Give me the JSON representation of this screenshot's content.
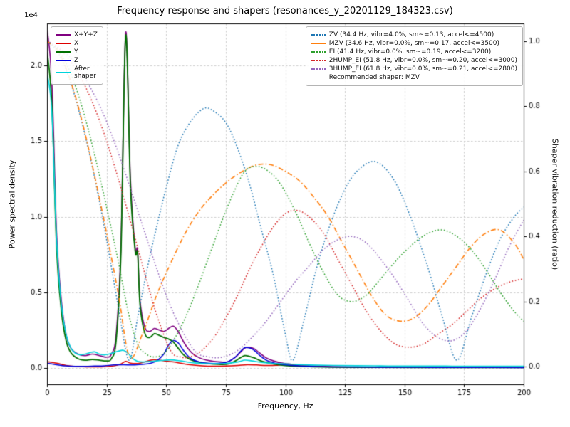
{
  "chart_data": {
    "type": "line",
    "title": "Frequency response and shapers (resonances_y_20201129_184323.csv)",
    "xlabel": "Frequency, Hz",
    "xlim": [
      0,
      200
    ],
    "xticks": [
      0,
      25,
      50,
      75,
      100,
      125,
      150,
      175,
      200
    ],
    "xtick_labels": [
      "0",
      "25",
      "50",
      "75",
      "100",
      "125",
      "150",
      "175",
      "200"
    ],
    "grid": true,
    "left_axis": {
      "label": "Power spectral density",
      "multiplier": "1e4",
      "lim": [
        -1100,
        22800
      ],
      "ticks": [
        0,
        5000,
        10000,
        15000,
        20000
      ],
      "tick_labels": [
        "0.0",
        "0.5",
        "1.0",
        "1.5",
        "2.0"
      ]
    },
    "right_axis": {
      "label": "Shaper vibration reduction (ratio)",
      "lim": [
        -0.054,
        1.054
      ],
      "ticks": [
        0,
        0.2,
        0.4,
        0.6,
        0.8,
        1.0
      ],
      "tick_labels": [
        "0.0",
        "0.2",
        "0.4",
        "0.6",
        "0.8",
        "1.0"
      ]
    },
    "series": [
      {
        "name": "psd-sum",
        "label": "X+Y+Z",
        "axis": "left",
        "color": "#800080",
        "dash": "solid",
        "width": 1.6,
        "x": [
          0,
          2,
          4,
          6,
          8,
          10,
          13,
          16,
          19,
          22,
          25,
          27,
          29,
          31,
          33,
          35,
          37,
          38,
          39,
          41,
          43,
          45,
          47,
          49,
          51,
          53,
          55,
          57,
          59,
          61,
          64,
          67,
          70,
          73,
          76,
          79,
          81,
          83,
          85,
          87,
          89,
          92,
          95,
          98,
          102,
          106,
          110,
          115,
          120,
          130,
          140,
          160,
          180,
          200
        ],
        "y": [
          22500,
          19000,
          9000,
          4500,
          2200,
          1300,
          900,
          800,
          900,
          800,
          700,
          900,
          2200,
          8000,
          22200,
          12500,
          7900,
          7800,
          4500,
          2700,
          2400,
          2600,
          2500,
          2400,
          2600,
          2750,
          2400,
          1800,
          1300,
          950,
          650,
          500,
          420,
          380,
          400,
          700,
          1000,
          1300,
          1350,
          1250,
          1000,
          650,
          450,
          330,
          240,
          170,
          130,
          90,
          70,
          50,
          40,
          30,
          25,
          20
        ]
      },
      {
        "name": "psd-x",
        "label": "X",
        "axis": "left",
        "color": "#dd0000",
        "dash": "solid",
        "width": 1.5,
        "x": [
          0,
          4,
          8,
          12,
          16,
          20,
          24,
          28,
          31,
          33,
          35,
          38,
          41,
          44,
          47,
          50,
          53,
          56,
          60,
          65,
          70,
          75,
          80,
          84,
          88,
          92,
          96,
          100,
          104,
          108,
          112,
          120,
          140,
          160,
          180,
          200
        ],
        "y": [
          400,
          300,
          150,
          80,
          60,
          60,
          70,
          120,
          250,
          420,
          300,
          280,
          380,
          520,
          500,
          430,
          380,
          300,
          200,
          130,
          100,
          110,
          150,
          200,
          180,
          150,
          160,
          220,
          180,
          120,
          80,
          50,
          30,
          25,
          20,
          15
        ]
      },
      {
        "name": "psd-y",
        "label": "Y",
        "axis": "left",
        "color": "#007000",
        "dash": "solid",
        "width": 1.8,
        "x": [
          0,
          2,
          4,
          6,
          8,
          10,
          13,
          16,
          19,
          22,
          25,
          27,
          29,
          31,
          33,
          35,
          37,
          38,
          39,
          41,
          43,
          45,
          47,
          49,
          51,
          53,
          55,
          57,
          59,
          61,
          64,
          67,
          70,
          73,
          76,
          79,
          81,
          83,
          85,
          87,
          89,
          92,
          95,
          98,
          102,
          106,
          110,
          120,
          140,
          160,
          180,
          200
        ],
        "y": [
          21000,
          17500,
          8000,
          3800,
          1800,
          1000,
          600,
          500,
          550,
          500,
          450,
          600,
          1800,
          7500,
          22000,
          12000,
          7700,
          7600,
          4200,
          2300,
          2000,
          2250,
          2150,
          2000,
          1900,
          1700,
          1300,
          900,
          650,
          480,
          350,
          280,
          240,
          220,
          250,
          450,
          650,
          800,
          750,
          650,
          500,
          350,
          250,
          180,
          120,
          90,
          70,
          40,
          25,
          20,
          15,
          10
        ]
      },
      {
        "name": "psd-z",
        "label": "Z",
        "axis": "left",
        "color": "#0000dd",
        "dash": "solid",
        "width": 1.5,
        "x": [
          0,
          4,
          8,
          12,
          16,
          20,
          24,
          28,
          32,
          36,
          40,
          43,
          46,
          49,
          51,
          53,
          55,
          57,
          59,
          61,
          64,
          67,
          70,
          73,
          76,
          79,
          81,
          83,
          85,
          87,
          89,
          92,
          95,
          98,
          102,
          106,
          110,
          120,
          140,
          160,
          180,
          200
        ],
        "y": [
          300,
          200,
          120,
          90,
          90,
          110,
          130,
          180,
          200,
          180,
          220,
          280,
          450,
          900,
          1500,
          1800,
          1650,
          1200,
          800,
          550,
          380,
          300,
          280,
          300,
          400,
          700,
          1050,
          1330,
          1300,
          1150,
          850,
          500,
          330,
          230,
          160,
          120,
          90,
          60,
          35,
          25,
          18,
          12
        ]
      },
      {
        "name": "psd-after-shaper",
        "label": "After\nshaper",
        "axis": "left",
        "color": "#00d4dc",
        "dash": "solid",
        "width": 1.6,
        "x": [
          0,
          2,
          4,
          6,
          8,
          10,
          12,
          14,
          16,
          18,
          20,
          22,
          24,
          26,
          28,
          30,
          32,
          34,
          36,
          38,
          40,
          44,
          48,
          52,
          56,
          60,
          65,
          70,
          75,
          80,
          83,
          86,
          90,
          95,
          100,
          105,
          110,
          120,
          130,
          140,
          150,
          160,
          170,
          180,
          190,
          200
        ],
        "y": [
          19500,
          17000,
          8500,
          4200,
          2200,
          1300,
          950,
          850,
          900,
          1000,
          1050,
          900,
          850,
          900,
          1000,
          1100,
          1150,
          950,
          600,
          420,
          380,
          420,
          480,
          520,
          450,
          350,
          280,
          260,
          280,
          380,
          500,
          450,
          350,
          280,
          250,
          210,
          180,
          150,
          130,
          120,
          110,
          110,
          105,
          100,
          100,
          100
        ]
      },
      {
        "name": "shaper-zv",
        "label": "ZV (34.4 Hz, vibr=4.0%, sm~=0.13, accel<=4500)",
        "axis": "right",
        "color": "#1f77b4",
        "dash": "dotted",
        "width": 1.5,
        "x": [
          0,
          5,
          10,
          15,
          20,
          25,
          30,
          34.4,
          38,
          42,
          46,
          50,
          55,
          60,
          65,
          68.8,
          75,
          80,
          85,
          90,
          95,
          100,
          103.2,
          108,
          113,
          118,
          124,
          130,
          137.6,
          145,
          152,
          160,
          166,
          172,
          178,
          184,
          190,
          196,
          200
        ],
        "y": [
          1.0,
          0.96,
          0.87,
          0.74,
          0.58,
          0.39,
          0.18,
          0.02,
          0.15,
          0.3,
          0.43,
          0.55,
          0.68,
          0.75,
          0.79,
          0.79,
          0.75,
          0.67,
          0.56,
          0.42,
          0.28,
          0.1,
          0.02,
          0.15,
          0.3,
          0.42,
          0.53,
          0.6,
          0.63,
          0.58,
          0.47,
          0.3,
          0.15,
          0.02,
          0.15,
          0.28,
          0.39,
          0.46,
          0.49
        ]
      },
      {
        "name": "shaper-mzv",
        "label": "MZV (34.6 Hz, vibr=0.0%, sm~=0.17, accel<=3500)",
        "axis": "right",
        "color": "#ff7f0e",
        "dash": "dashdot",
        "width": 1.6,
        "x": [
          0,
          5,
          10,
          15,
          20,
          25,
          30,
          34.6,
          40,
          46,
          52,
          58,
          64,
          70,
          76,
          82,
          88,
          94,
          100,
          106,
          112,
          118,
          124,
          130,
          136,
          142,
          148,
          154,
          160,
          166,
          172,
          178,
          184,
          190,
          196,
          200
        ],
        "y": [
          1.0,
          0.965,
          0.875,
          0.745,
          0.585,
          0.41,
          0.22,
          0.03,
          0.1,
          0.22,
          0.32,
          0.41,
          0.48,
          0.53,
          0.57,
          0.6,
          0.62,
          0.62,
          0.6,
          0.57,
          0.52,
          0.46,
          0.38,
          0.3,
          0.22,
          0.16,
          0.14,
          0.15,
          0.19,
          0.25,
          0.31,
          0.37,
          0.41,
          0.42,
          0.38,
          0.33
        ]
      },
      {
        "name": "shaper-ei",
        "label": "EI (41.4 Hz, vibr=0.0%, sm~=0.19, accel<=3200)",
        "axis": "right",
        "color": "#2ca02c",
        "dash": "dotted",
        "width": 1.5,
        "x": [
          0,
          5,
          10,
          15,
          20,
          25,
          30,
          34,
          38,
          41.4,
          45,
          49,
          53,
          58,
          63,
          68,
          73,
          78,
          83,
          88,
          93,
          98,
          104,
          110,
          116,
          122,
          128,
          134,
          140,
          147,
          154,
          160,
          166,
          172,
          178,
          184,
          190,
          196,
          200
        ],
        "y": [
          1.0,
          0.97,
          0.9,
          0.79,
          0.65,
          0.49,
          0.32,
          0.17,
          0.07,
          0.04,
          0.03,
          0.04,
          0.08,
          0.15,
          0.24,
          0.34,
          0.44,
          0.53,
          0.6,
          0.615,
          0.6,
          0.56,
          0.48,
          0.38,
          0.29,
          0.22,
          0.2,
          0.22,
          0.27,
          0.33,
          0.38,
          0.41,
          0.42,
          0.4,
          0.36,
          0.3,
          0.23,
          0.17,
          0.14
        ]
      },
      {
        "name": "shaper-2hump-ei",
        "label": "2HUMP_EI (51.8 Hz, vibr=0.0%, sm~=0.20, accel<=3000)",
        "axis": "right",
        "color": "#d62728",
        "dash": "dotted",
        "width": 1.5,
        "x": [
          0,
          6,
          12,
          18,
          24,
          30,
          36,
          42,
          46,
          51.8,
          56,
          60,
          65,
          70,
          75,
          80,
          85,
          90,
          95,
          100,
          105,
          110,
          116,
          122,
          128,
          134,
          140,
          146,
          152,
          158,
          164,
          170,
          176,
          182,
          188,
          194,
          200
        ],
        "y": [
          1.0,
          0.97,
          0.915,
          0.83,
          0.715,
          0.575,
          0.42,
          0.26,
          0.16,
          0.05,
          0.03,
          0.03,
          0.05,
          0.09,
          0.15,
          0.22,
          0.3,
          0.37,
          0.43,
          0.47,
          0.48,
          0.46,
          0.41,
          0.33,
          0.25,
          0.17,
          0.11,
          0.07,
          0.06,
          0.07,
          0.1,
          0.13,
          0.17,
          0.21,
          0.24,
          0.26,
          0.27
        ]
      },
      {
        "name": "shaper-3hump-ei",
        "label": "3HUMP_EI (61.8 Hz, vibr=0.0%, sm~=0.21, accel<=2800)",
        "axis": "right",
        "color": "#9467bd",
        "dash": "dotted",
        "width": 1.5,
        "x": [
          0,
          6,
          12,
          18,
          24,
          30,
          36,
          42,
          48,
          54,
          61.8,
          68,
          74,
          80,
          86,
          92,
          98,
          104,
          110,
          116,
          122,
          128,
          134,
          140,
          146,
          152,
          158,
          164,
          170,
          176,
          182,
          188,
          194,
          200
        ],
        "y": [
          1.0,
          0.975,
          0.93,
          0.86,
          0.77,
          0.655,
          0.525,
          0.39,
          0.26,
          0.15,
          0.05,
          0.03,
          0.03,
          0.05,
          0.09,
          0.14,
          0.2,
          0.26,
          0.31,
          0.36,
          0.39,
          0.4,
          0.38,
          0.33,
          0.27,
          0.2,
          0.13,
          0.09,
          0.08,
          0.11,
          0.18,
          0.27,
          0.37,
          0.45
        ]
      }
    ]
  },
  "legend_psd": {
    "items": [
      {
        "label": "X+Y+Z",
        "color": "#800080",
        "dash": "solid"
      },
      {
        "label": "X",
        "color": "#dd0000",
        "dash": "solid"
      },
      {
        "label": "Y",
        "color": "#007000",
        "dash": "solid"
      },
      {
        "label": "Z",
        "color": "#0000dd",
        "dash": "solid"
      },
      {
        "label": "After\nshaper",
        "color": "#00d4dc",
        "dash": "solid"
      }
    ]
  },
  "legend_shapers": {
    "items": [
      {
        "label": "ZV (34.4 Hz, vibr=4.0%, sm~=0.13, accel<=4500)",
        "color": "#1f77b4",
        "dash": "dotted"
      },
      {
        "label": "MZV (34.6 Hz, vibr=0.0%, sm~=0.17, accel<=3500)",
        "color": "#ff7f0e",
        "dash": "dashdot"
      },
      {
        "label": "EI (41.4 Hz, vibr=0.0%, sm~=0.19, accel<=3200)",
        "color": "#2ca02c",
        "dash": "dotted"
      },
      {
        "label": "2HUMP_EI (51.8 Hz, vibr=0.0%, sm~=0.20, accel<=3000)",
        "color": "#d62728",
        "dash": "dotted"
      },
      {
        "label": "3HUMP_EI (61.8 Hz, vibr=0.0%, sm~=0.21, accel<=2800)",
        "color": "#9467bd",
        "dash": "dotted"
      }
    ],
    "note": "Recommended shaper: MZV"
  }
}
